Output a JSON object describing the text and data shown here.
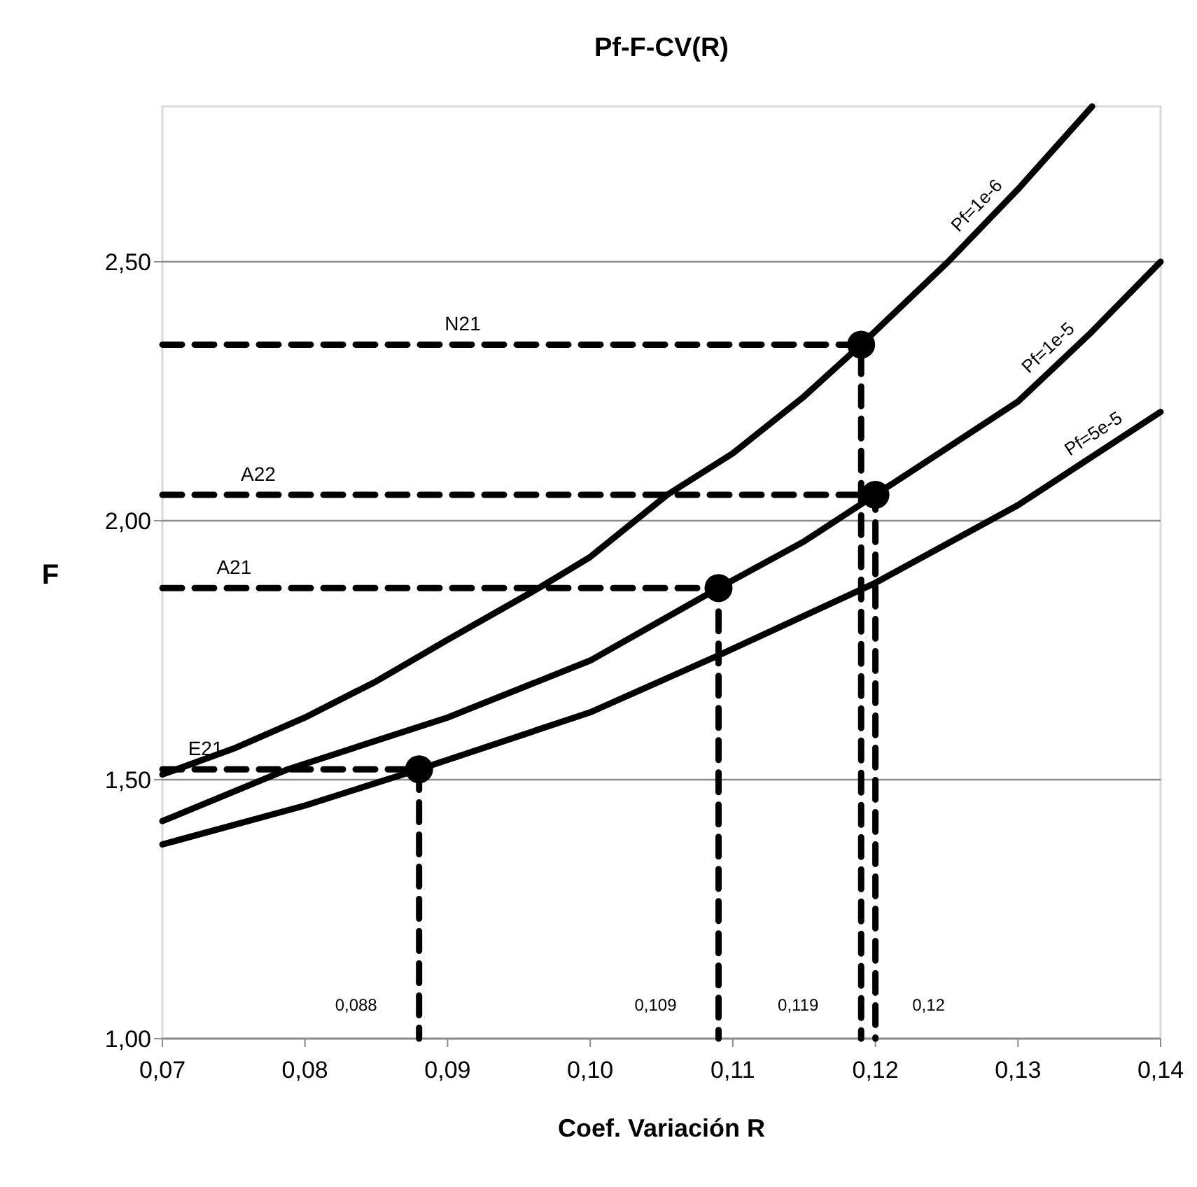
{
  "chart_data": {
    "type": "line",
    "title": "Pf-F-CV(R)",
    "xlabel": "Coef. Variación  R",
    "ylabel": "F",
    "xlim": [
      0.07,
      0.14
    ],
    "ylim": [
      1,
      2.8
    ],
    "xticks": [
      {
        "value": 0.07,
        "label": "0,07"
      },
      {
        "value": 0.08,
        "label": "0,08"
      },
      {
        "value": 0.09,
        "label": "0,09"
      },
      {
        "value": 0.1,
        "label": "0,10"
      },
      {
        "value": 0.11,
        "label": "0,11"
      },
      {
        "value": 0.12,
        "label": "0,12"
      },
      {
        "value": 0.13,
        "label": "0,13"
      },
      {
        "value": 0.14,
        "label": "0,14"
      }
    ],
    "yticks": [
      {
        "value": 1,
        "label": "1,00"
      },
      {
        "value": 1.5,
        "label": "1,50"
      },
      {
        "value": 2,
        "label": "2,00"
      },
      {
        "value": 2.5,
        "label": "2,50"
      }
    ],
    "grid": "y",
    "series": [
      {
        "name": "Pf=1e-6",
        "color": "#000000",
        "x": [
          0.07,
          0.075,
          0.08,
          0.085,
          0.09,
          0.0964,
          0.1,
          0.1054,
          0.11,
          0.115,
          0.119,
          0.1251,
          0.13,
          0.1352
        ],
        "values": [
          1.51,
          1.56,
          1.62,
          1.69,
          1.77,
          1.87,
          1.93,
          2.05,
          2.13,
          2.24,
          2.34,
          2.5,
          2.64,
          2.8
        ]
      },
      {
        "name": "Pf=1e-5",
        "color": "#000000",
        "x": [
          0.07,
          0.0788,
          0.09,
          0.1,
          0.109,
          0.115,
          0.12,
          0.125,
          0.13,
          0.135,
          0.14
        ],
        "values": [
          1.42,
          1.52,
          1.62,
          1.73,
          1.87,
          1.96,
          2.05,
          2.14,
          2.23,
          2.36,
          2.5
        ]
      },
      {
        "name": "Pf=5e-5",
        "color": "#000000",
        "x": [
          0.07,
          0.08,
          0.088,
          0.1,
          0.109,
          0.12,
          0.13,
          0.14
        ],
        "values": [
          1.375,
          1.45,
          1.52,
          1.63,
          1.74,
          1.88,
          2.03,
          2.21
        ]
      },
      {
        "type": "line",
        "line_style": "dashed",
        "color": "#000000",
        "x": [
          0.07,
          0.119,
          0.119
        ],
        "values": [
          2.34,
          2.34,
          1
        ]
      },
      {
        "type": "line",
        "line_style": "dashed",
        "color": "#000000",
        "x": [
          0.07,
          0.12,
          0.12
        ],
        "values": [
          2.05,
          2.05,
          1
        ]
      },
      {
        "type": "line",
        "line_style": "dashed",
        "color": "#000000",
        "x": [
          0.07,
          0.109,
          0.109
        ],
        "values": [
          1.87,
          1.87,
          1
        ]
      },
      {
        "type": "line",
        "line_style": "dashed",
        "color": "#000000",
        "x": [
          0.07,
          0.088,
          0.088
        ],
        "values": [
          1.52,
          1.52,
          1
        ]
      },
      {
        "type": "scatter",
        "marker": "circle",
        "color": "#000000",
        "x": [
          0.088,
          0.109,
          0.119,
          0.12
        ],
        "values": [
          1.52,
          1.87,
          2.34,
          2.05
        ]
      }
    ],
    "annotations": [
      {
        "text": "N21",
        "x": 0.0898,
        "y": 2.34
      },
      {
        "text": "A22",
        "x": 0.0755,
        "y": 2.05
      },
      {
        "text": "A21",
        "x": 0.0738,
        "y": 1.87
      },
      {
        "text": "E21",
        "x": 0.0718,
        "y": 1.52
      },
      {
        "text": "0,088",
        "x": 0.088,
        "y": 1
      },
      {
        "text": "0,109",
        "x": 0.109,
        "y": 1
      },
      {
        "text": "0,119",
        "x": 0.119,
        "y": 1
      },
      {
        "text": "0,12",
        "x": 0.12,
        "y": 1
      }
    ]
  }
}
